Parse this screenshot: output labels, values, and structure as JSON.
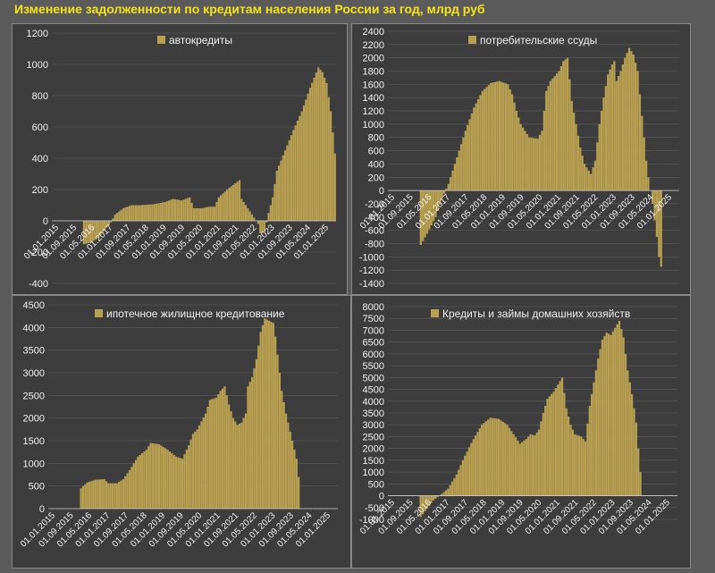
{
  "page_title": "Изменение задолженности по кредитам населения России за год, млрд руб",
  "colors": {
    "bar": "#b8a050",
    "background": "#3d3d3d",
    "text": "#f0f0f0",
    "title": "#f5e21a",
    "grid": "#606060"
  },
  "chart_data": [
    {
      "type": "bar",
      "legend": "автокредиты",
      "yticks": [
        -400,
        -200,
        0,
        200,
        400,
        600,
        800,
        1000,
        1200
      ],
      "ylim": [
        -400,
        1200
      ],
      "xticks": [
        "01.01.2015",
        "01.09.2015",
        "01.05.2016",
        "01.01.2017",
        "01.09.2017",
        "01.05.2018",
        "01.01.2019",
        "01.09.2019",
        "01.05.2020",
        "01.01.2021",
        "01.09.2021",
        "01.05.2022",
        "01.01.2023",
        "01.09.2023",
        "01.05.2024",
        "01.01.2025"
      ],
      "profile": [
        [
          0,
          0
        ],
        [
          14,
          0
        ],
        [
          15,
          -150
        ],
        [
          18,
          -140
        ],
        [
          22,
          -110
        ],
        [
          25,
          -60
        ],
        [
          28,
          -10
        ],
        [
          30,
          40
        ],
        [
          34,
          80
        ],
        [
          38,
          100
        ],
        [
          42,
          100
        ],
        [
          48,
          105
        ],
        [
          54,
          120
        ],
        [
          58,
          140
        ],
        [
          62,
          130
        ],
        [
          66,
          150
        ],
        [
          68,
          80
        ],
        [
          72,
          80
        ],
        [
          75,
          90
        ],
        [
          78,
          90
        ],
        [
          80,
          150
        ],
        [
          84,
          200
        ],
        [
          88,
          240
        ],
        [
          90,
          260
        ],
        [
          91,
          140
        ],
        [
          94,
          80
        ],
        [
          97,
          20
        ],
        [
          99,
          -20
        ],
        [
          100,
          -80
        ],
        [
          102,
          -70
        ],
        [
          104,
          50
        ],
        [
          106,
          150
        ],
        [
          108,
          320
        ],
        [
          112,
          450
        ],
        [
          116,
          580
        ],
        [
          120,
          700
        ],
        [
          124,
          850
        ],
        [
          128,
          980
        ],
        [
          130,
          950
        ],
        [
          132,
          880
        ],
        [
          134,
          700
        ],
        [
          136,
          430
        ]
      ]
    },
    {
      "type": "bar",
      "legend": "потребительские ссуды",
      "yticks": [
        -1400,
        -1200,
        -1000,
        -800,
        -600,
        -400,
        -200,
        0,
        200,
        400,
        600,
        800,
        1000,
        1200,
        1400,
        1600,
        1800,
        2000,
        2200,
        2400
      ],
      "ylim": [
        -1400,
        2400
      ],
      "xticks": [
        "01.01.2015",
        "01.09.2015",
        "01.05.2016",
        "01.01.2017",
        "01.09.2017",
        "01.05.2018",
        "01.01.2019",
        "01.09.2019",
        "01.05.2020",
        "01.01.2021",
        "01.09.2021",
        "01.05.2022",
        "01.01.2023",
        "01.09.2023",
        "01.05.2024",
        "01.01.2025"
      ],
      "profile": [
        [
          0,
          0
        ],
        [
          14,
          0
        ],
        [
          15,
          -820
        ],
        [
          18,
          -650
        ],
        [
          22,
          -400
        ],
        [
          25,
          -120
        ],
        [
          28,
          100
        ],
        [
          32,
          500
        ],
        [
          36,
          900
        ],
        [
          40,
          1250
        ],
        [
          44,
          1500
        ],
        [
          48,
          1620
        ],
        [
          52,
          1650
        ],
        [
          56,
          1600
        ],
        [
          58,
          1450
        ],
        [
          60,
          1200
        ],
        [
          62,
          1000
        ],
        [
          64,
          900
        ],
        [
          66,
          800
        ],
        [
          70,
          780
        ],
        [
          72,
          900
        ],
        [
          74,
          1500
        ],
        [
          76,
          1650
        ],
        [
          80,
          1800
        ],
        [
          82,
          1950
        ],
        [
          84,
          2000
        ],
        [
          86,
          1350
        ],
        [
          88,
          1000
        ],
        [
          90,
          650
        ],
        [
          92,
          400
        ],
        [
          94,
          300
        ],
        [
          95,
          250
        ],
        [
          97,
          450
        ],
        [
          99,
          1000
        ],
        [
          101,
          1400
        ],
        [
          103,
          1750
        ],
        [
          105,
          1900
        ],
        [
          106,
          1950
        ],
        [
          107,
          1650
        ],
        [
          109,
          1800
        ],
        [
          111,
          2000
        ],
        [
          113,
          2150
        ],
        [
          115,
          2050
        ],
        [
          117,
          1800
        ],
        [
          118,
          1450
        ],
        [
          120,
          800
        ],
        [
          121,
          450
        ],
        [
          122,
          200
        ],
        [
          123,
          0
        ],
        [
          124,
          -200
        ],
        [
          126,
          -700
        ],
        [
          127,
          -1000
        ],
        [
          128,
          -1150
        ]
      ]
    },
    {
      "type": "bar",
      "legend": "ипотечное жилищное кредитование",
      "yticks": [
        0,
        500,
        1000,
        1500,
        2000,
        2500,
        3000,
        3500,
        4000,
        4500
      ],
      "ylim": [
        0,
        4500
      ],
      "xticks": [
        "01.01.2015",
        "01.09.2015",
        "01.05.2016",
        "01.01.2017",
        "01.09.2017",
        "01.05.2018",
        "01.01.2019",
        "01.09.2019",
        "01.05.2020",
        "01.01.2021",
        "01.09.2021",
        "01.05.2022",
        "01.01.2023",
        "01.09.2023",
        "01.05.2024",
        "01.01.2025"
      ],
      "profile": [
        [
          0,
          0
        ],
        [
          14,
          0
        ],
        [
          15,
          450
        ],
        [
          18,
          580
        ],
        [
          22,
          640
        ],
        [
          26,
          650
        ],
        [
          28,
          560
        ],
        [
          32,
          560
        ],
        [
          35,
          650
        ],
        [
          38,
          850
        ],
        [
          42,
          1150
        ],
        [
          46,
          1300
        ],
        [
          48,
          1450
        ],
        [
          52,
          1420
        ],
        [
          56,
          1300
        ],
        [
          60,
          1150
        ],
        [
          63,
          1100
        ],
        [
          66,
          1400
        ],
        [
          68,
          1650
        ],
        [
          70,
          1750
        ],
        [
          74,
          2100
        ],
        [
          76,
          2400
        ],
        [
          79,
          2450
        ],
        [
          81,
          2600
        ],
        [
          83,
          2700
        ],
        [
          85,
          2300
        ],
        [
          87,
          2000
        ],
        [
          89,
          1850
        ],
        [
          91,
          1900
        ],
        [
          93,
          2100
        ],
        [
          94,
          2700
        ],
        [
          96,
          2900
        ],
        [
          98,
          3300
        ],
        [
          100,
          3900
        ],
        [
          102,
          4200
        ],
        [
          104,
          4150
        ],
        [
          106,
          4100
        ],
        [
          107,
          3800
        ],
        [
          108,
          3400
        ],
        [
          110,
          2600
        ],
        [
          112,
          2100
        ],
        [
          114,
          1700
        ],
        [
          116,
          1300
        ],
        [
          117,
          1100
        ],
        [
          118,
          700
        ]
      ]
    },
    {
      "type": "bar",
      "legend": "Кредиты и займы домашних хозяйств",
      "yticks": [
        -1000,
        -500,
        0,
        500,
        1000,
        1500,
        2000,
        2500,
        3000,
        3500,
        4000,
        4500,
        5000,
        5500,
        6000,
        6500,
        7000,
        7500,
        8000
      ],
      "ylim": [
        -1000,
        8000
      ],
      "xticks": [
        "01.01.2015",
        "01.09.2015",
        "01.05.2016",
        "01.01.2017",
        "01.09.2017",
        "01.05.2018",
        "01.01.2019",
        "01.09.2019",
        "01.05.2020",
        "01.01.2021",
        "01.09.2021",
        "01.05.2022",
        "01.01.2023",
        "01.09.2023",
        "01.05.2024",
        "01.01.2025"
      ],
      "profile": [
        [
          0,
          0
        ],
        [
          14,
          0
        ],
        [
          15,
          -900
        ],
        [
          18,
          -550
        ],
        [
          21,
          -200
        ],
        [
          24,
          0
        ],
        [
          28,
          300
        ],
        [
          32,
          900
        ],
        [
          36,
          1700
        ],
        [
          40,
          2400
        ],
        [
          44,
          3000
        ],
        [
          48,
          3300
        ],
        [
          52,
          3250
        ],
        [
          56,
          3000
        ],
        [
          59,
          2600
        ],
        [
          62,
          2200
        ],
        [
          65,
          2400
        ],
        [
          67,
          2600
        ],
        [
          69,
          2550
        ],
        [
          71,
          2800
        ],
        [
          73,
          3500
        ],
        [
          75,
          4100
        ],
        [
          78,
          4400
        ],
        [
          80,
          4700
        ],
        [
          82,
          5000
        ],
        [
          84,
          3700
        ],
        [
          86,
          3000
        ],
        [
          88,
          2600
        ],
        [
          91,
          2500
        ],
        [
          93,
          2300
        ],
        [
          95,
          3800
        ],
        [
          97,
          4800
        ],
        [
          99,
          5800
        ],
        [
          101,
          6600
        ],
        [
          103,
          6900
        ],
        [
          105,
          6800
        ],
        [
          107,
          7100
        ],
        [
          109,
          7400
        ],
        [
          111,
          6700
        ],
        [
          113,
          5300
        ],
        [
          115,
          4300
        ],
        [
          117,
          3100
        ],
        [
          118,
          2000
        ],
        [
          119,
          1000
        ]
      ]
    }
  ]
}
